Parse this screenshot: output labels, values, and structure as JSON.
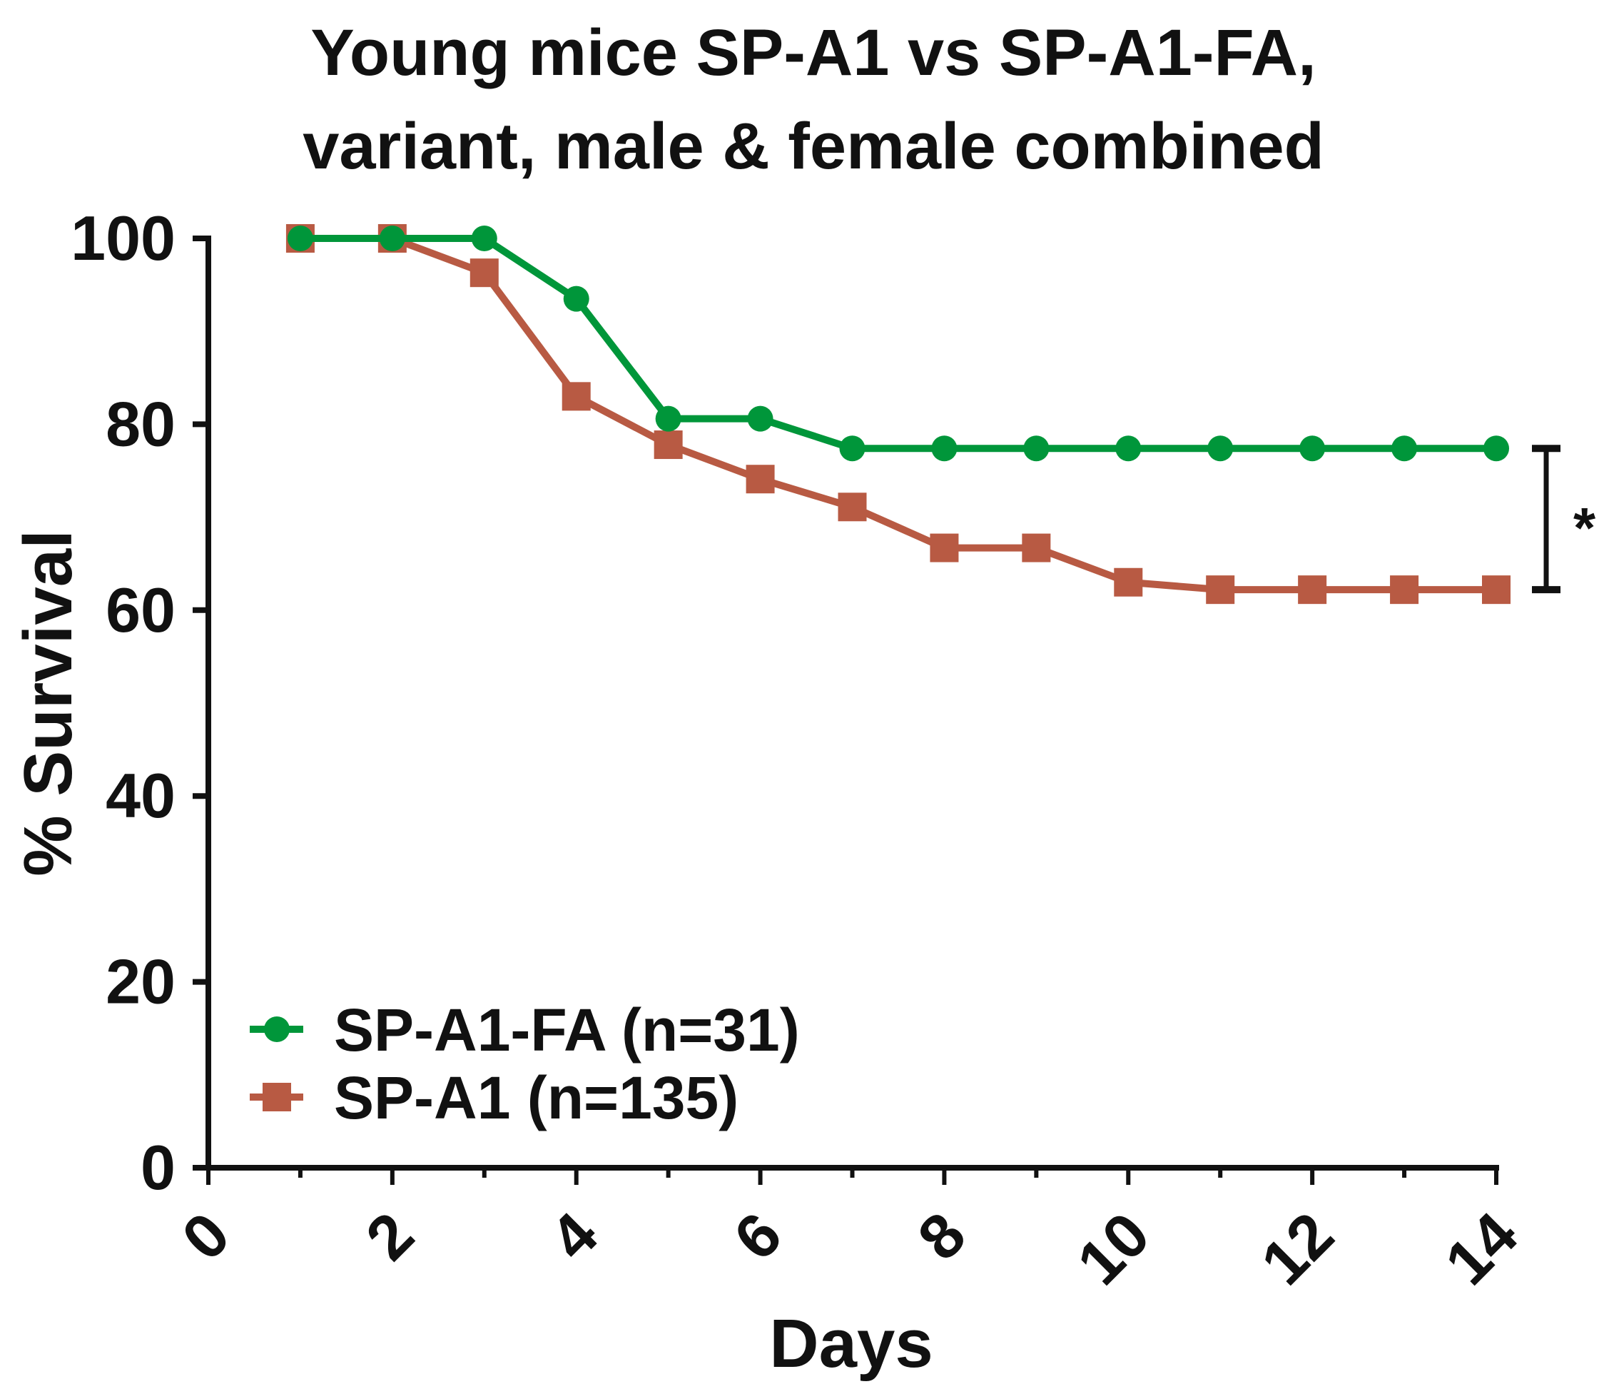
{
  "chart_data": {
    "type": "line",
    "title_lines": [
      "Young mice  SP-A1 vs SP-A1-FA,",
      "variant, male & female combined"
    ],
    "xlabel": "Days",
    "ylabel": "% Survival",
    "xlim": [
      0,
      14
    ],
    "ylim": [
      0,
      100
    ],
    "xticks": [
      "0",
      "2",
      "4",
      "6",
      "8",
      "10",
      "12",
      "14"
    ],
    "yticks": [
      "0",
      "20",
      "40",
      "60",
      "80",
      "100"
    ],
    "grid": false,
    "legend_position": "bottom-left",
    "series": [
      {
        "name": "SP-A1-FA (n=31)",
        "color": "#00963a",
        "marker": "circle",
        "x": [
          1,
          2,
          3,
          4,
          5,
          6,
          7,
          8,
          9,
          10,
          11,
          12,
          13,
          14
        ],
        "y": [
          100,
          100,
          100,
          93.5,
          80.6,
          80.6,
          77.4,
          77.4,
          77.4,
          77.4,
          77.4,
          77.4,
          77.4,
          77.4
        ]
      },
      {
        "name": "SP-A1 (n=135)",
        "color": "#b85a43",
        "marker": "square",
        "x": [
          1,
          2,
          3,
          4,
          5,
          6,
          7,
          8,
          9,
          10,
          11,
          12,
          13,
          14
        ],
        "y": [
          100,
          100,
          96.3,
          83.0,
          77.8,
          74.1,
          71.1,
          66.7,
          66.7,
          63.0,
          62.2,
          62.2,
          62.2,
          62.2
        ]
      }
    ],
    "annotation": {
      "text": "*",
      "between_y": [
        77.4,
        62.2
      ],
      "at_x": 14
    }
  }
}
